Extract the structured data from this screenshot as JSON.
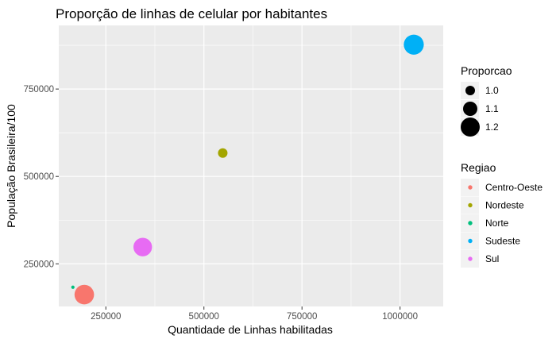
{
  "chart_data": {
    "type": "scatter",
    "title": "Proporção de linhas de celular por habitantes",
    "xlabel": "Quantidade de Linhas habilitadas",
    "ylabel": "População Brasileira/100",
    "xlim": [
      130000,
      1110000
    ],
    "ylim": [
      128000,
      932000
    ],
    "x_ticks": [
      {
        "value": 250000,
        "label": "250000"
      },
      {
        "value": 500000,
        "label": "500000"
      },
      {
        "value": 750000,
        "label": "750000"
      },
      {
        "value": 1000000,
        "label": "1000000"
      }
    ],
    "y_ticks": [
      {
        "value": 250000,
        "label": "250000"
      },
      {
        "value": 500000,
        "label": "500000"
      },
      {
        "value": 750000,
        "label": "750000"
      }
    ],
    "grid": true,
    "size_legend": {
      "title": "Proporcao",
      "entries": [
        {
          "value": 1.0,
          "label": "1.0"
        },
        {
          "value": 1.1,
          "label": "1.1"
        },
        {
          "value": 1.2,
          "label": "1.2"
        }
      ]
    },
    "color_legend": {
      "title": "Regiao",
      "entries": [
        {
          "label": "Centro-Oeste",
          "color": "#F8766D"
        },
        {
          "label": "Nordeste",
          "color": "#A3A500"
        },
        {
          "label": "Norte",
          "color": "#00BF7D"
        },
        {
          "label": "Sudeste",
          "color": "#00B0F6"
        },
        {
          "label": "Sul",
          "color": "#E76BF3"
        }
      ]
    },
    "points": [
      {
        "region": "Centro-Oeste",
        "x": 195000,
        "y": 162000,
        "proporcao": 1.21
      },
      {
        "region": "Nordeste",
        "x": 548000,
        "y": 567000,
        "proporcao": 1.0
      },
      {
        "region": "Norte",
        "x": 166000,
        "y": 183000,
        "proporcao": 0.87
      },
      {
        "region": "Sudeste",
        "x": 1035000,
        "y": 877000,
        "proporcao": 1.22
      },
      {
        "region": "Sul",
        "x": 344000,
        "y": 298000,
        "proporcao": 1.19
      }
    ]
  }
}
